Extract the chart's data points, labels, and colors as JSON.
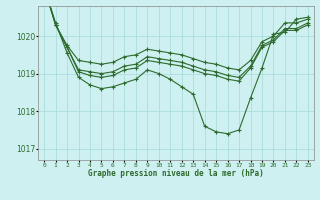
{
  "background_color": "#cff0f0",
  "grid_color": "#aadddd",
  "line_color": "#2d6a2d",
  "xlabel": "Graphe pression niveau de la mer (hPa)",
  "ylim": [
    1016.7,
    1020.8
  ],
  "xlim": [
    -0.5,
    23.5
  ],
  "yticks": [
    1017,
    1018,
    1019,
    1020
  ],
  "xtick_labels": [
    "0",
    "1",
    "2",
    "3",
    "4",
    "5",
    "6",
    "7",
    "8",
    "9",
    "10",
    "11",
    "12",
    "13",
    "14",
    "15",
    "16",
    "17",
    "18",
    "19",
    "20",
    "21",
    "22",
    "23"
  ],
  "series": [
    [
      1021.3,
      1020.3,
      1019.75,
      1019.35,
      1019.3,
      1019.25,
      1019.3,
      1019.45,
      1019.5,
      1019.65,
      1019.6,
      1019.55,
      1019.5,
      1019.4,
      1019.3,
      1019.25,
      1019.15,
      1019.1,
      1019.35,
      1019.85,
      1020.0,
      1020.35,
      1020.35,
      1020.45
    ],
    [
      1021.3,
      1020.3,
      1019.7,
      1019.1,
      1019.05,
      1019.0,
      1019.05,
      1019.2,
      1019.25,
      1019.45,
      1019.4,
      1019.35,
      1019.3,
      1019.2,
      1019.1,
      1019.05,
      1018.95,
      1018.9,
      1019.2,
      1019.75,
      1019.9,
      1020.2,
      1020.2,
      1020.35
    ],
    [
      1021.3,
      1020.3,
      1019.7,
      1019.05,
      1018.95,
      1018.9,
      1018.95,
      1019.1,
      1019.15,
      1019.35,
      1019.3,
      1019.25,
      1019.2,
      1019.1,
      1019.0,
      1018.95,
      1018.85,
      1018.8,
      1019.15,
      1019.7,
      1019.85,
      1020.15,
      1020.15,
      1020.3
    ],
    [
      1021.3,
      1020.35,
      1019.55,
      1018.9,
      1018.7,
      1018.6,
      1018.65,
      1018.75,
      1018.85,
      1019.1,
      1019.0,
      1018.85,
      1018.65,
      1018.45,
      1017.6,
      1017.45,
      1017.4,
      1017.5,
      1018.35,
      1019.15,
      1020.05,
      1020.1,
      1020.45,
      1020.5
    ]
  ]
}
